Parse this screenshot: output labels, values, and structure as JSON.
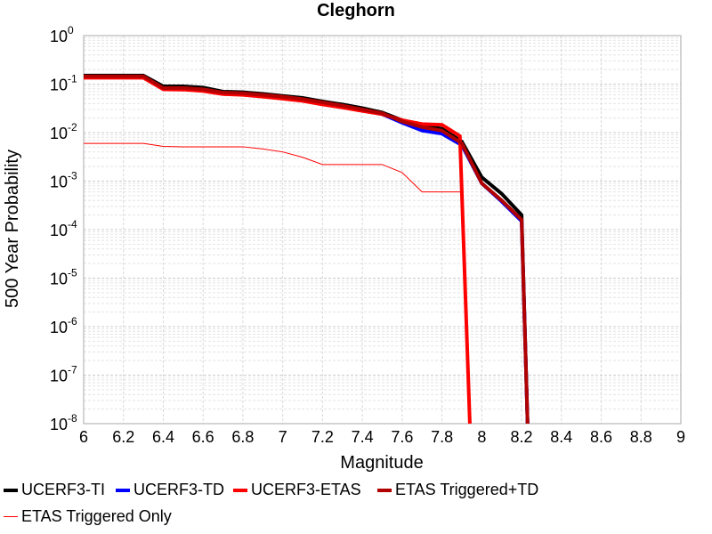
{
  "chart_data": {
    "type": "line",
    "title": "Cleghorn",
    "xlabel": "Magnitude",
    "ylabel": "500 Year Probability",
    "xlim": [
      6,
      9
    ],
    "ylim": [
      1e-08,
      1
    ],
    "yscale": "log",
    "grid": true,
    "x_ticks": [
      "6",
      "6.2",
      "6.4",
      "6.6",
      "6.8",
      "7",
      "7.2",
      "7.4",
      "7.6",
      "7.8",
      "8",
      "8.2",
      "8.4",
      "8.6",
      "8.8",
      "9"
    ],
    "y_ticks": [
      {
        "base": "10",
        "exp": "0"
      },
      {
        "base": "10",
        "exp": "-1"
      },
      {
        "base": "10",
        "exp": "-2"
      },
      {
        "base": "10",
        "exp": "-3"
      },
      {
        "base": "10",
        "exp": "-4"
      },
      {
        "base": "10",
        "exp": "-5"
      },
      {
        "base": "10",
        "exp": "-6"
      },
      {
        "base": "10",
        "exp": "-7"
      },
      {
        "base": "10",
        "exp": "-8"
      }
    ],
    "legend_position": "bottom",
    "series": [
      {
        "name": "UCERF3-TI",
        "color": "#000000",
        "width": 4,
        "x": [
          6,
          6.3,
          6.4,
          6.5,
          6.6,
          6.7,
          6.8,
          6.9,
          7.0,
          7.1,
          7.2,
          7.3,
          7.4,
          7.5,
          7.6,
          7.7,
          7.8,
          7.9,
          8.0,
          8.1,
          8.2,
          8.23
        ],
        "y": [
          0.15,
          0.15,
          0.09,
          0.09,
          0.085,
          0.07,
          0.068,
          0.063,
          0.057,
          0.052,
          0.044,
          0.038,
          0.032,
          0.026,
          0.018,
          0.014,
          0.012,
          0.0065,
          0.0012,
          0.00055,
          0.0002,
          1e-08
        ]
      },
      {
        "name": "UCERF3-TD",
        "color": "#0000ff",
        "width": 4,
        "x": [
          6,
          6.3,
          6.4,
          6.5,
          6.6,
          6.7,
          6.8,
          6.9,
          7.0,
          7.1,
          7.2,
          7.3,
          7.4,
          7.5,
          7.6,
          7.7,
          7.8,
          7.9,
          8.0,
          8.1,
          8.2,
          8.23
        ],
        "y": [
          0.14,
          0.14,
          0.08,
          0.08,
          0.075,
          0.065,
          0.063,
          0.058,
          0.053,
          0.047,
          0.04,
          0.034,
          0.029,
          0.024,
          0.016,
          0.011,
          0.0095,
          0.0055,
          0.0009,
          0.00038,
          0.00015,
          1e-08
        ]
      },
      {
        "name": "UCERF3-ETAS",
        "color": "#ff0000",
        "width": 4,
        "x": [
          6,
          6.3,
          6.4,
          6.5,
          6.6,
          6.7,
          6.8,
          6.9,
          7.0,
          7.1,
          7.2,
          7.3,
          7.4,
          7.5,
          7.6,
          7.7,
          7.8,
          7.89,
          7.94
        ],
        "y": [
          0.135,
          0.135,
          0.078,
          0.077,
          0.072,
          0.062,
          0.06,
          0.055,
          0.05,
          0.045,
          0.038,
          0.033,
          0.028,
          0.024,
          0.018,
          0.015,
          0.0145,
          0.0085,
          1e-08
        ]
      },
      {
        "name": "ETAS Triggered+TD",
        "color": "#b00000",
        "width": 4,
        "x": [
          6,
          6.3,
          6.4,
          6.5,
          6.6,
          6.7,
          6.8,
          6.9,
          7.0,
          7.1,
          7.2,
          7.3,
          7.4,
          7.5,
          7.6,
          7.7,
          7.8,
          7.9,
          8.0,
          8.1,
          8.2,
          8.23
        ],
        "y": [
          0.145,
          0.145,
          0.083,
          0.083,
          0.078,
          0.067,
          0.065,
          0.06,
          0.055,
          0.049,
          0.042,
          0.036,
          0.03,
          0.025,
          0.017,
          0.013,
          0.011,
          0.006,
          0.0009,
          0.0004,
          0.00016,
          1e-08
        ]
      },
      {
        "name": "ETAS Triggered Only",
        "color": "#ff0000",
        "width": 1,
        "x": [
          6,
          6.3,
          6.4,
          6.5,
          6.6,
          6.7,
          6.8,
          6.9,
          7.0,
          7.1,
          7.2,
          7.3,
          7.4,
          7.5,
          7.6,
          7.7,
          7.8,
          7.9,
          7.94
        ],
        "y": [
          0.006,
          0.006,
          0.0052,
          0.0051,
          0.0051,
          0.0051,
          0.0051,
          0.0046,
          0.004,
          0.0031,
          0.0022,
          0.0022,
          0.0022,
          0.0022,
          0.0015,
          0.0006,
          0.0006,
          0.0006,
          1e-08
        ]
      }
    ]
  }
}
